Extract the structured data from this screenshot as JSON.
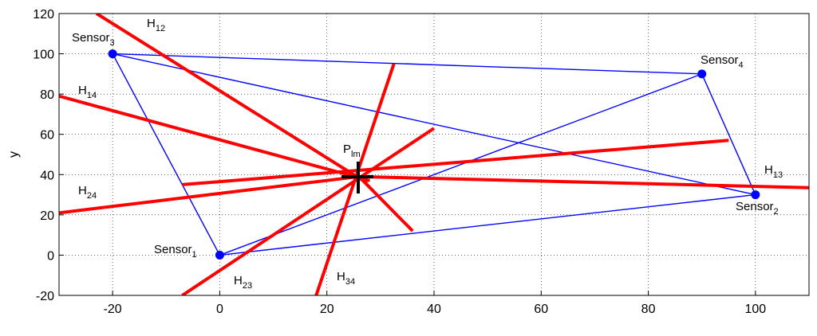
{
  "chart_data": {
    "type": "line",
    "ylabel": "y",
    "xlim": [
      -30,
      110
    ],
    "ylim": [
      -20,
      120
    ],
    "xticks": [
      -20,
      0,
      20,
      40,
      60,
      80,
      100
    ],
    "yticks": [
      -20,
      0,
      20,
      40,
      60,
      80,
      100,
      120
    ],
    "grid": true,
    "points": {
      "color": "#0000ff",
      "link_color": "#0000ff",
      "x": [
        0,
        100,
        -20,
        90
      ],
      "y": [
        0,
        30,
        100,
        90
      ]
    },
    "series": [
      {
        "color": "#ff0000",
        "x": [
          -23,
          27.5
        ],
        "y": [
          120,
          35.8
        ]
      },
      {
        "color": "#ff0000",
        "x": [
          -30,
          28
        ],
        "y": [
          79,
          37
        ]
      },
      {
        "color": "#ff0000",
        "x": [
          -30,
          26
        ],
        "y": [
          21,
          39
        ]
      },
      {
        "color": "#ff0000",
        "x": [
          -7,
          95
        ],
        "y": [
          35,
          57
        ]
      },
      {
        "color": "#ff0000",
        "x": [
          26,
          110
        ],
        "y": [
          39,
          33.5
        ]
      },
      {
        "color": "#ff0000",
        "x": [
          -7,
          40
        ],
        "y": [
          -20,
          63
        ]
      },
      {
        "color": "#ff0000",
        "x": [
          18,
          32.5
        ],
        "y": [
          -20,
          95
        ]
      },
      {
        "color": "#ff0000",
        "x": [
          26,
          36
        ],
        "y": [
          39,
          12
        ]
      }
    ],
    "annotations": [
      {
        "text": "Sensor",
        "sub": "1"
      },
      {
        "text": "Sensor",
        "sub": "2"
      },
      {
        "text": "Sensor",
        "sub": "3"
      },
      {
        "text": "Sensor",
        "sub": "4"
      },
      {
        "text": "H",
        "sub": "12"
      },
      {
        "text": "H",
        "sub": "14"
      },
      {
        "text": "H",
        "sub": "24"
      },
      {
        "text": "H",
        "sub": "13"
      },
      {
        "text": "H",
        "sub": "23"
      },
      {
        "text": "H",
        "sub": "34"
      },
      {
        "text": "P",
        "sub": "lm"
      }
    ]
  }
}
